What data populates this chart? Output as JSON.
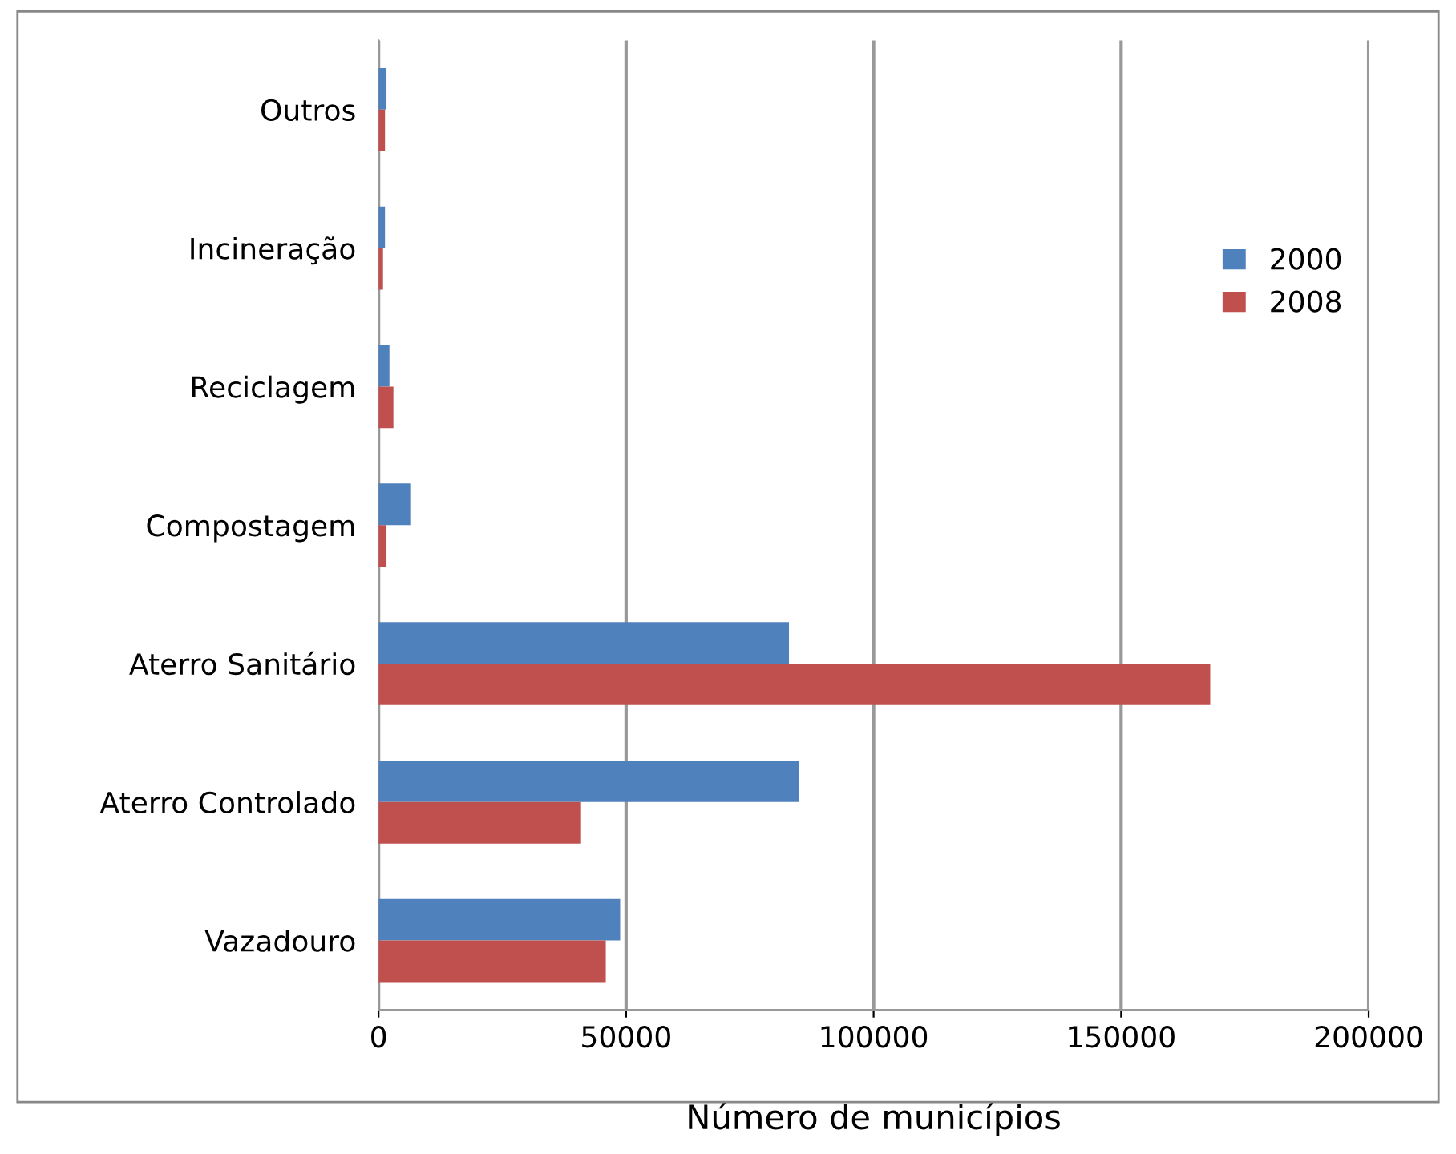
{
  "chart_data": {
    "type": "bar",
    "orientation": "horizontal",
    "xlabel": "Número de municípios",
    "categories": [
      "Outros",
      "Incineração",
      "Reciclagem",
      "Compostagem",
      "Aterro Sanitário",
      "Aterro Controlado",
      "Vazadouro"
    ],
    "series": [
      {
        "name": "2000",
        "color": "#4f81bd",
        "values": [
          1600,
          1300,
          2200,
          6400,
          82900,
          84900,
          48800
        ]
      },
      {
        "name": "2008",
        "color": "#c0504d",
        "values": [
          1300,
          900,
          3000,
          1600,
          168000,
          40900,
          45900
        ]
      }
    ],
    "xlim": [
      0,
      200000
    ],
    "xticks": [
      0,
      50000,
      100000,
      150000,
      200000
    ],
    "grid": "x",
    "legend": "right"
  }
}
